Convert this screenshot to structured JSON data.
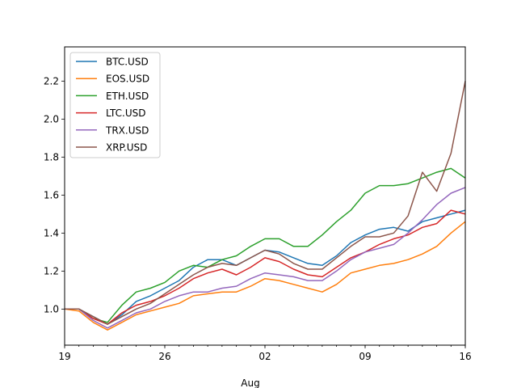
{
  "chart_data": {
    "type": "line",
    "title": "",
    "xlabel": "Aug",
    "ylabel": "",
    "x_ticks": [
      {
        "date": "2018-07-19",
        "label": "19"
      },
      {
        "date": "2018-07-26",
        "label": "26"
      },
      {
        "date": "2018-08-02",
        "label": "02"
      },
      {
        "date": "2018-08-09",
        "label": "09"
      },
      {
        "date": "2018-08-16",
        "label": "16"
      }
    ],
    "y_ticks": [
      1.0,
      1.2,
      1.4,
      1.6,
      1.8,
      2.0,
      2.2
    ],
    "xlim": [
      "2018-07-19",
      "2018-08-16"
    ],
    "ylim": [
      0.81,
      2.38
    ],
    "grid": false,
    "legend_position": "upper left",
    "x": [
      "2018-07-19",
      "2018-07-20",
      "2018-07-21",
      "2018-07-22",
      "2018-07-23",
      "2018-07-24",
      "2018-07-25",
      "2018-07-26",
      "2018-07-27",
      "2018-07-28",
      "2018-07-29",
      "2018-07-30",
      "2018-07-31",
      "2018-08-01",
      "2018-08-02",
      "2018-08-03",
      "2018-08-04",
      "2018-08-05",
      "2018-08-06",
      "2018-08-07",
      "2018-08-08",
      "2018-08-09",
      "2018-08-10",
      "2018-08-11",
      "2018-08-12",
      "2018-08-13",
      "2018-08-14",
      "2018-08-15",
      "2018-08-16"
    ],
    "series": [
      {
        "name": "BTC.USD",
        "color": "#1f77b4",
        "values": [
          1.0,
          1.0,
          0.96,
          0.92,
          0.97,
          1.04,
          1.07,
          1.11,
          1.15,
          1.22,
          1.26,
          1.26,
          1.23,
          1.27,
          1.31,
          1.3,
          1.27,
          1.24,
          1.23,
          1.28,
          1.35,
          1.39,
          1.42,
          1.43,
          1.41,
          1.46,
          1.48,
          1.5,
          1.52
        ]
      },
      {
        "name": "EOS.USD",
        "color": "#ff7f0e",
        "values": [
          1.0,
          0.99,
          0.93,
          0.89,
          0.93,
          0.97,
          0.99,
          1.01,
          1.03,
          1.07,
          1.08,
          1.09,
          1.09,
          1.12,
          1.16,
          1.15,
          1.13,
          1.11,
          1.09,
          1.13,
          1.19,
          1.21,
          1.23,
          1.24,
          1.26,
          1.29,
          1.33,
          1.4,
          1.46
        ]
      },
      {
        "name": "ETH.USD",
        "color": "#2ca02c",
        "values": [
          1.0,
          1.0,
          0.95,
          0.93,
          1.02,
          1.09,
          1.11,
          1.14,
          1.2,
          1.23,
          1.22,
          1.26,
          1.28,
          1.33,
          1.37,
          1.37,
          1.33,
          1.33,
          1.39,
          1.46,
          1.52,
          1.61,
          1.65,
          1.65,
          1.66,
          1.69,
          1.72,
          1.74,
          1.69
        ]
      },
      {
        "name": "LTC.USD",
        "color": "#d62728",
        "values": [
          1.0,
          1.0,
          0.95,
          0.92,
          0.98,
          1.02,
          1.04,
          1.07,
          1.11,
          1.16,
          1.19,
          1.21,
          1.18,
          1.22,
          1.27,
          1.25,
          1.21,
          1.18,
          1.17,
          1.22,
          1.27,
          1.3,
          1.34,
          1.37,
          1.39,
          1.43,
          1.45,
          1.52,
          1.5
        ]
      },
      {
        "name": "TRX.USD",
        "color": "#9467bd",
        "values": [
          1.0,
          1.0,
          0.94,
          0.9,
          0.94,
          0.98,
          1.0,
          1.04,
          1.07,
          1.09,
          1.09,
          1.11,
          1.12,
          1.16,
          1.19,
          1.18,
          1.17,
          1.15,
          1.15,
          1.2,
          1.26,
          1.3,
          1.32,
          1.34,
          1.4,
          1.47,
          1.55,
          1.61,
          1.64
        ]
      },
      {
        "name": "XRP.USD",
        "color": "#8c564b",
        "values": [
          1.0,
          1.0,
          0.96,
          0.92,
          0.96,
          1.0,
          1.03,
          1.08,
          1.13,
          1.18,
          1.22,
          1.24,
          1.23,
          1.27,
          1.31,
          1.29,
          1.24,
          1.21,
          1.21,
          1.27,
          1.33,
          1.38,
          1.38,
          1.4,
          1.49,
          1.72,
          1.62,
          1.82,
          2.2
        ]
      }
    ]
  }
}
